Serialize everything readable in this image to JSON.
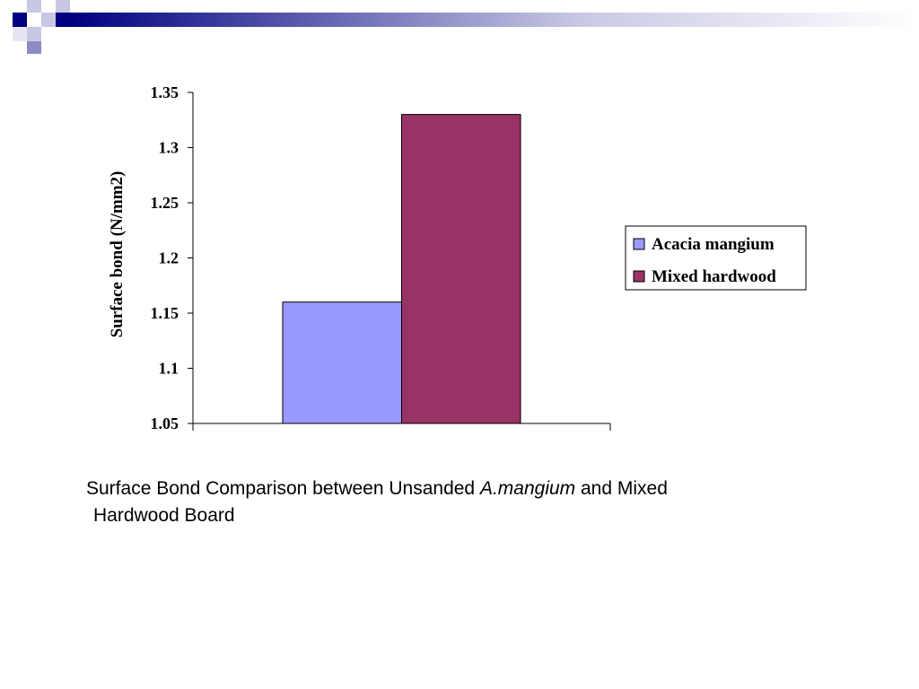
{
  "chart_data": {
    "type": "bar",
    "y_label": "Surface bond (N/mm2)",
    "categories": [
      null
    ],
    "series": [
      {
        "name": "Acacia mangium",
        "color": "#9999ff",
        "values": [
          1.16
        ]
      },
      {
        "name": "Mixed hardwood",
        "color": "#993366",
        "values": [
          1.33
        ]
      }
    ],
    "ylim": [
      1.05,
      1.35
    ],
    "yticks": [
      1.05,
      1.1,
      1.15,
      1.2,
      1.25,
      1.3,
      1.35
    ],
    "grid": false,
    "legend": "right"
  },
  "caption": [
    "Surface Bond Comparison between Unsanded ",
    "A.mangium",
    " and Mixed",
    "Hardwood Board"
  ]
}
